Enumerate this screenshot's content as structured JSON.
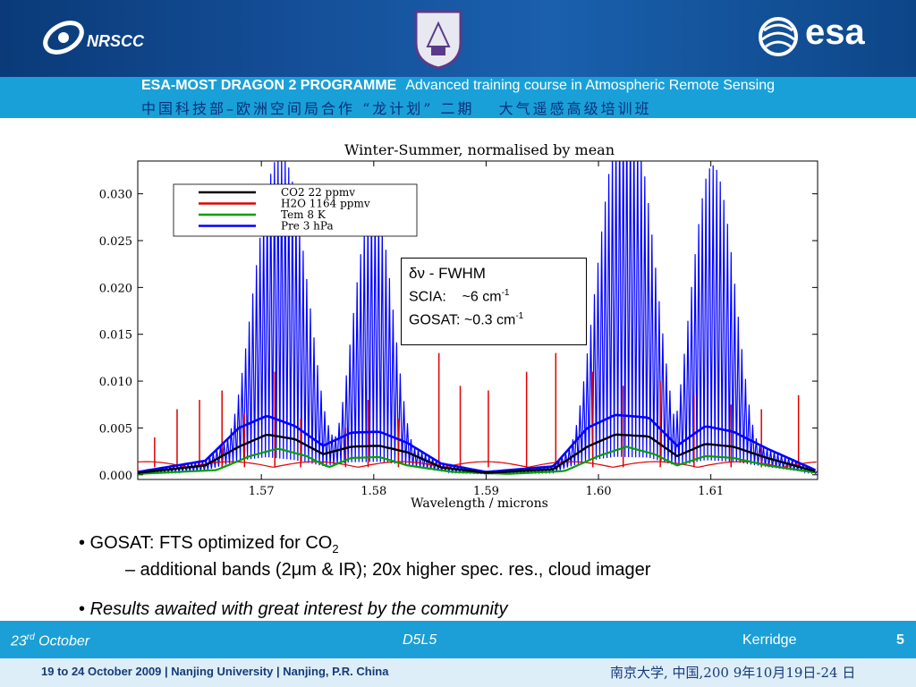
{
  "header": {
    "org_left": "NRSCC",
    "org_right": "esa",
    "programme": "ESA-MOST DRAGON 2 PROGRAMME",
    "course": "Advanced training course in Atmospheric Remote Sensing",
    "cn_line": "中国科技部–欧洲空间局合作 “龙计划” 二期　 大气遥感高级培训班"
  },
  "chart_data": {
    "type": "line",
    "title": "Winter-Summer, normalised by mean",
    "xlabel": "Wavelength / microns",
    "ylabel": "",
    "xlim": [
      1.559,
      1.6195
    ],
    "ylim": [
      -0.0005,
      0.0335
    ],
    "x_ticks": [
      "1.57",
      "1.58",
      "1.59",
      "1.60",
      "1.61"
    ],
    "x_tick_values": [
      1.57,
      1.58,
      1.59,
      1.6,
      1.61
    ],
    "y_ticks": [
      "0.000",
      "0.005",
      "0.010",
      "0.015",
      "0.020",
      "0.025",
      "0.030"
    ],
    "y_tick_values": [
      0,
      0.005,
      0.01,
      0.015,
      0.02,
      0.025,
      0.03
    ],
    "grid": false,
    "legend_position": "top-left",
    "series": [
      {
        "name": "CO2 22 ppmv",
        "color": "#000000",
        "x": [
          1.559,
          1.565,
          1.568,
          1.5705,
          1.573,
          1.5755,
          1.578,
          1.5805,
          1.583,
          1.586,
          1.59,
          1.596,
          1.599,
          1.6015,
          1.6045,
          1.607,
          1.6095,
          1.612,
          1.615,
          1.6195
        ],
        "y": [
          0.0002,
          0.001,
          0.003,
          0.0043,
          0.0038,
          0.0022,
          0.003,
          0.0031,
          0.0024,
          0.0008,
          0.0002,
          0.0006,
          0.003,
          0.0043,
          0.0041,
          0.002,
          0.0033,
          0.003,
          0.0018,
          0.0003
        ]
      },
      {
        "name": "H2O 1164 ppmv",
        "color": "#e00000",
        "x": [
          1.559,
          1.5605,
          1.5625,
          1.5645,
          1.5665,
          1.5685,
          1.5712,
          1.5735,
          1.5775,
          1.5795,
          1.5822,
          1.5858,
          1.5877,
          1.5902,
          1.5936,
          1.5962,
          1.5995,
          1.6022,
          1.6055,
          1.6085,
          1.6118,
          1.6145,
          1.6178,
          1.6195
        ],
        "y": [
          0.0003,
          0.004,
          0.007,
          0.008,
          0.009,
          0.0065,
          0.011,
          0.006,
          0.005,
          0.008,
          0.006,
          0.013,
          0.0095,
          0.009,
          0.011,
          0.013,
          0.011,
          0.0095,
          0.01,
          0.0085,
          0.0075,
          0.007,
          0.0085,
          0.0003
        ]
      },
      {
        "name": "Tem 8 K",
        "color": "#00a000",
        "x": [
          1.559,
          1.566,
          1.569,
          1.5715,
          1.574,
          1.576,
          1.578,
          1.5805,
          1.583,
          1.587,
          1.592,
          1.597,
          1.6,
          1.6025,
          1.605,
          1.607,
          1.6095,
          1.612,
          1.615,
          1.6195
        ],
        "y": [
          0.0001,
          0.0005,
          0.002,
          0.0028,
          0.002,
          0.0008,
          0.0018,
          0.0019,
          0.001,
          0.0003,
          0.0001,
          0.0004,
          0.002,
          0.003,
          0.0022,
          0.001,
          0.002,
          0.0018,
          0.001,
          0.0002
        ]
      },
      {
        "name": "Pre 3 hPa",
        "color": "#0000ff",
        "x": [
          1.559,
          1.565,
          1.568,
          1.5705,
          1.573,
          1.5755,
          1.578,
          1.5805,
          1.583,
          1.586,
          1.59,
          1.596,
          1.599,
          1.6015,
          1.6045,
          1.607,
          1.6095,
          1.612,
          1.615,
          1.6195
        ],
        "y": [
          0.0003,
          0.0015,
          0.005,
          0.0063,
          0.0052,
          0.0031,
          0.0045,
          0.0046,
          0.0034,
          0.0012,
          0.0003,
          0.0009,
          0.005,
          0.0064,
          0.0061,
          0.0031,
          0.0052,
          0.0046,
          0.0028,
          0.0004
        ]
      }
    ],
    "blue_spike_bands": [
      {
        "center": 1.5718,
        "peak": 0.0285,
        "halfwidth": 0.005
      },
      {
        "center": 1.58,
        "peak": 0.0245,
        "halfwidth": 0.0037
      },
      {
        "center": 1.6025,
        "peak": 0.033,
        "halfwidth": 0.0052
      },
      {
        "center": 1.6102,
        "peak": 0.028,
        "halfwidth": 0.0042
      }
    ]
  },
  "callout": {
    "line1_symbol": "δν",
    "line1_text": " - FWHM",
    "line2_label": "SCIA:",
    "line2_value": "~6 cm",
    "line2_exp": "-1",
    "line3_label": "GOSAT:",
    "line3_value": "~0.3 cm",
    "line3_exp": "-1"
  },
  "bullets": {
    "b1_prefix": "• GOSAT: FTS optimized for CO",
    "b1_sub": "2",
    "b2_a": "– additional bands (2",
    "b2_mu": "μ",
    "b2_b": "m & IR); 20x higher spec. res., cloud imager",
    "b3_bullet": "•",
    "b3_text": "Results awaited with great interest by the community"
  },
  "footer": {
    "date_day": "23",
    "date_sup": "rd",
    "date_month": "October",
    "code": "D5L5",
    "author": "Kerridge",
    "page": "5"
  },
  "bottom_bar": {
    "left": "19 to 24 October 2009 | Nanjing University | Nanjing, P.R. China",
    "right": "南京大学, 中国,200 9年10月19日-24 日"
  }
}
